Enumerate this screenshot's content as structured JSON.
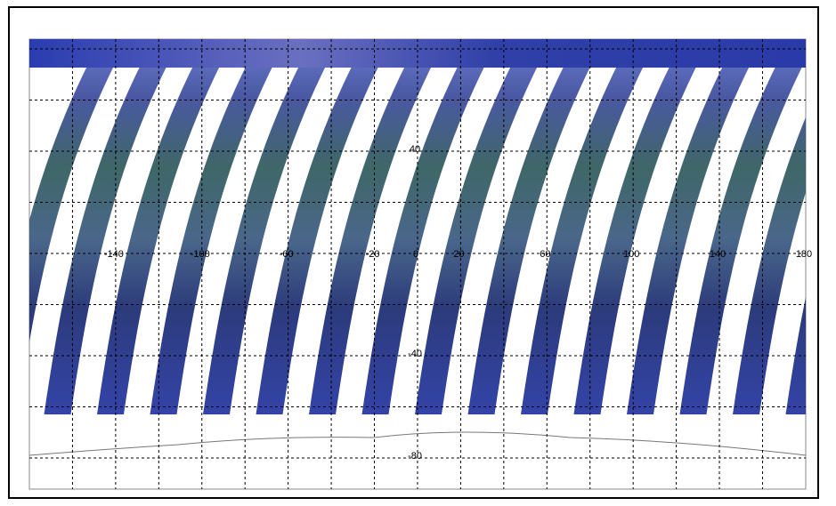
{
  "map": {
    "lon_labels": [
      -140,
      -100,
      -60,
      -20,
      0,
      20,
      60,
      100,
      140,
      180
    ],
    "lat_labels": [
      40,
      -40,
      -80
    ]
  }
}
